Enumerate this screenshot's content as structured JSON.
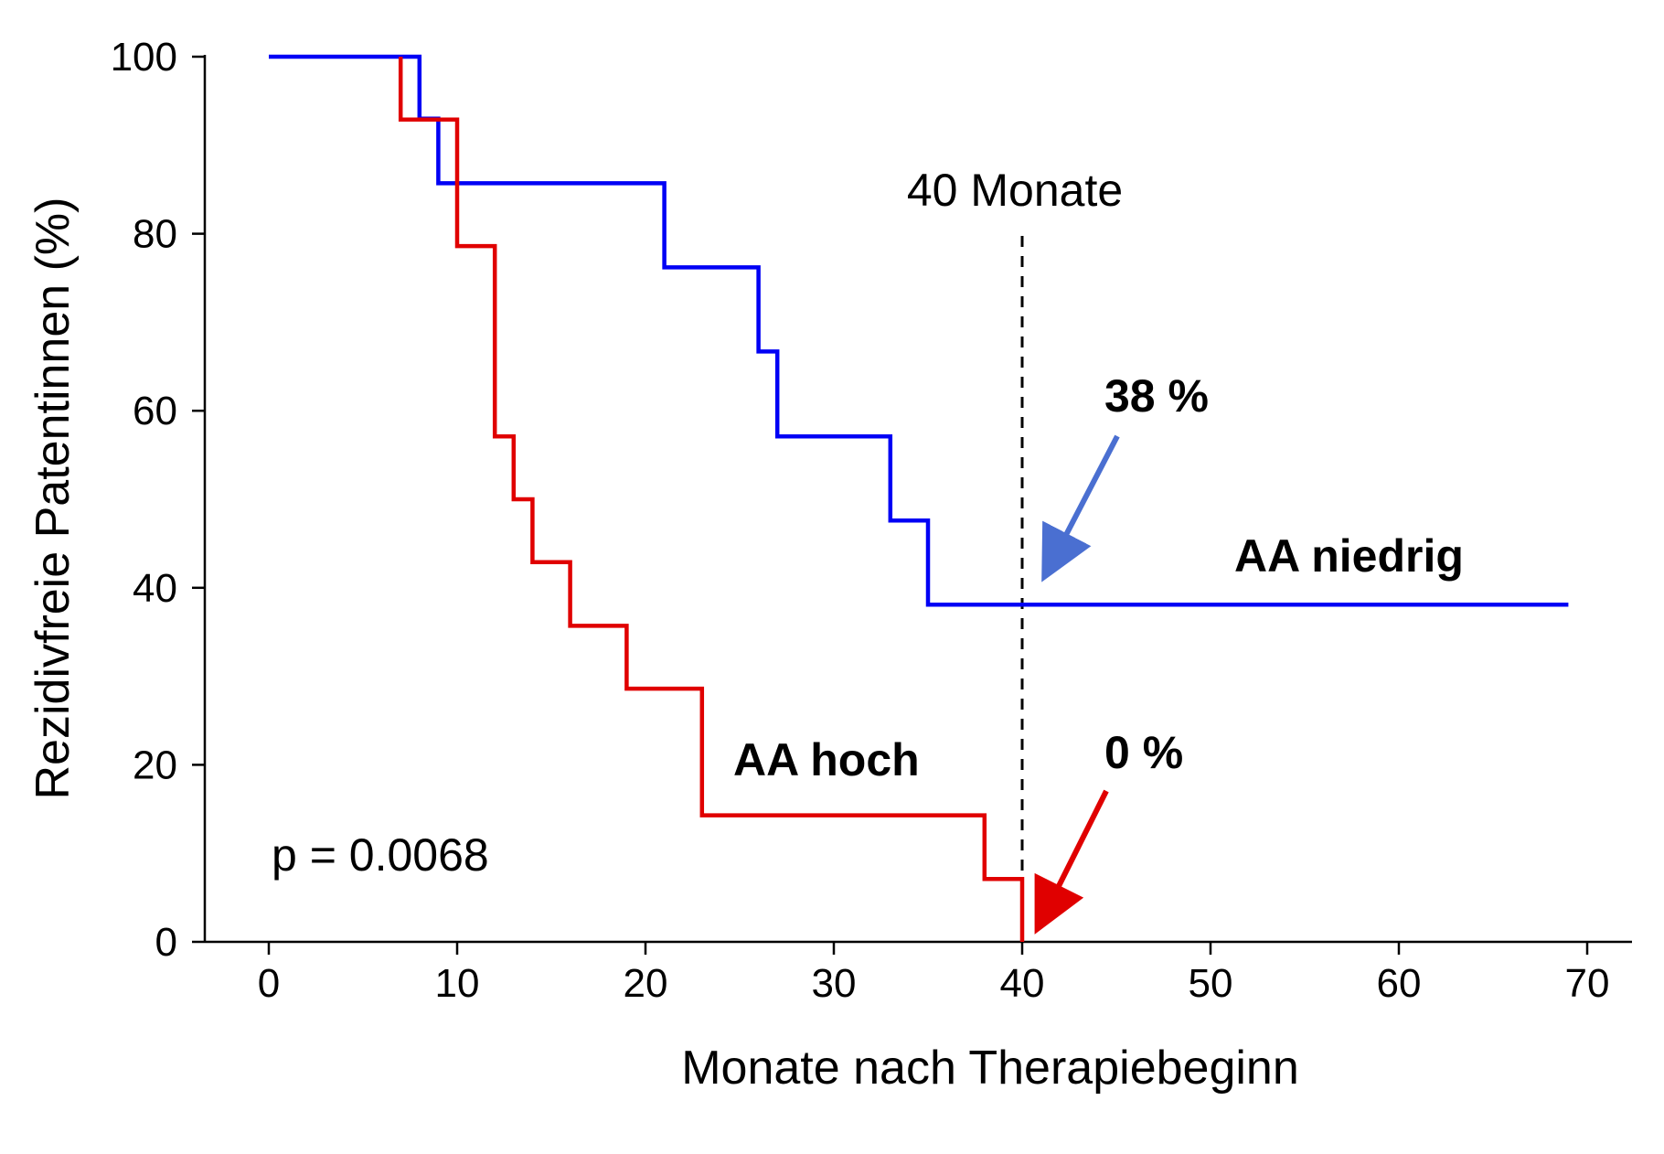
{
  "chart_data": {
    "type": "line",
    "step": true,
    "xlabel": "Monate nach Therapiebeginn",
    "ylabel": "Rezidivfreie Patentinnen (%)",
    "xlim": [
      -4,
      72
    ],
    "ylim": [
      0,
      100
    ],
    "x_ticks": [
      0,
      10,
      20,
      30,
      40,
      50,
      60,
      70
    ],
    "y_ticks": [
      0,
      20,
      40,
      60,
      80,
      100
    ],
    "grid": false,
    "series": [
      {
        "name": "AA niedrig",
        "color": "#0000f5",
        "points": [
          [
            0,
            100
          ],
          [
            8,
            100
          ],
          [
            8,
            93
          ],
          [
            9,
            93
          ],
          [
            9,
            85.7
          ],
          [
            21,
            85.7
          ],
          [
            21,
            76.2
          ],
          [
            26,
            76.2
          ],
          [
            26,
            66.7
          ],
          [
            27,
            66.7
          ],
          [
            27,
            57.1
          ],
          [
            33,
            57.1
          ],
          [
            33,
            47.6
          ],
          [
            35,
            47.6
          ],
          [
            35,
            38.1
          ],
          [
            69,
            38.1
          ]
        ]
      },
      {
        "name": "AA hoch",
        "color": "#e00000",
        "points": [
          [
            7,
            100
          ],
          [
            7,
            92.9
          ],
          [
            10,
            92.9
          ],
          [
            10,
            78.6
          ],
          [
            12,
            78.6
          ],
          [
            12,
            57.1
          ],
          [
            13,
            57.1
          ],
          [
            13,
            50
          ],
          [
            14,
            50
          ],
          [
            14,
            42.9
          ],
          [
            16,
            42.9
          ],
          [
            16,
            35.7
          ],
          [
            19,
            35.7
          ],
          [
            19,
            28.6
          ],
          [
            23,
            28.6
          ],
          [
            23,
            14.3
          ],
          [
            38,
            14.3
          ],
          [
            38,
            7.1
          ],
          [
            40,
            7.1
          ],
          [
            40,
            0
          ]
        ]
      }
    ],
    "annotations": {
      "vline_x": 40,
      "vline_label": "40 Monate",
      "p_value": "p = 0.0068",
      "blue_pct": "38 %",
      "red_pct": "0 %",
      "blue_label": "AA niedrig",
      "red_label": "AA hoch",
      "blue_color": "#1a2ed6",
      "red_color": "#e00000",
      "arrow_blue_color": "#4a6fd1",
      "arrow_red_color": "#e00000"
    }
  }
}
